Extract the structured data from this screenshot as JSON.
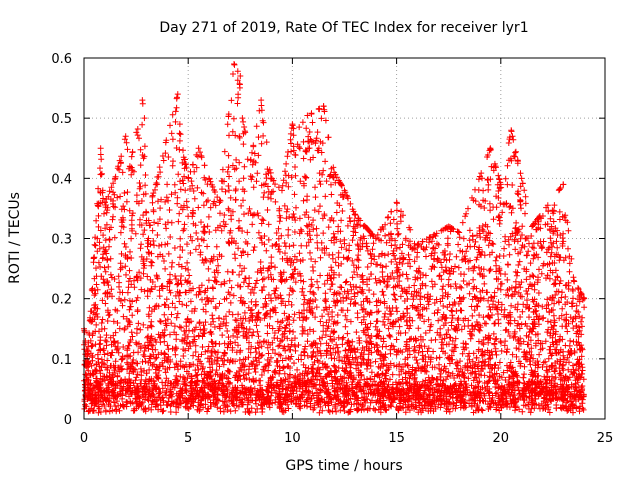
{
  "chart_data": {
    "type": "scatter",
    "title": "Day 271 of 2019, Rate Of TEC Index for receiver lyr1",
    "xlabel": "GPS time / hours",
    "ylabel": "ROTI / TECUs",
    "xlim": [
      0,
      25
    ],
    "ylim": [
      0,
      0.6
    ],
    "x_ticks": [
      "0",
      "5",
      "10",
      "15",
      "20",
      "25"
    ],
    "y_ticks": [
      "0",
      "0.1",
      "0.2",
      "0.3",
      "0.4",
      "0.5",
      "0.6"
    ],
    "grid": true,
    "marker": "plus",
    "series": [
      {
        "name": "ROTI",
        "color": "#ff0000",
        "points_sample": [
          [
            0.0,
            0.15
          ],
          [
            0.2,
            0.12
          ],
          [
            0.8,
            0.45
          ],
          [
            0.9,
            0.38
          ],
          [
            1.0,
            0.36
          ],
          [
            1.5,
            0.4
          ],
          [
            2.0,
            0.47
          ],
          [
            2.2,
            0.42
          ],
          [
            2.8,
            0.53
          ],
          [
            2.9,
            0.5
          ],
          [
            3.0,
            0.33
          ],
          [
            4.5,
            0.54
          ],
          [
            4.6,
            0.49
          ],
          [
            5.0,
            0.4
          ],
          [
            5.5,
            0.45
          ],
          [
            6.0,
            0.4
          ],
          [
            6.5,
            0.36
          ],
          [
            7.2,
            0.59
          ],
          [
            7.5,
            0.57
          ],
          [
            7.6,
            0.5
          ],
          [
            8.0,
            0.43
          ],
          [
            8.5,
            0.53
          ],
          [
            9.0,
            0.4
          ],
          [
            9.5,
            0.38
          ],
          [
            10.0,
            0.49
          ],
          [
            11.5,
            0.52
          ],
          [
            12.0,
            0.41
          ],
          [
            12.5,
            0.38
          ],
          [
            13.0,
            0.34
          ],
          [
            14.0,
            0.3
          ],
          [
            15.0,
            0.36
          ],
          [
            16.0,
            0.29
          ],
          [
            17.5,
            0.32
          ],
          [
            18.0,
            0.31
          ],
          [
            19.5,
            0.45
          ],
          [
            20.0,
            0.39
          ],
          [
            20.5,
            0.48
          ],
          [
            21.0,
            0.4
          ],
          [
            21.5,
            0.32
          ],
          [
            23.0,
            0.39
          ],
          [
            23.5,
            0.23
          ],
          [
            24.0,
            0.2
          ]
        ]
      }
    ]
  }
}
